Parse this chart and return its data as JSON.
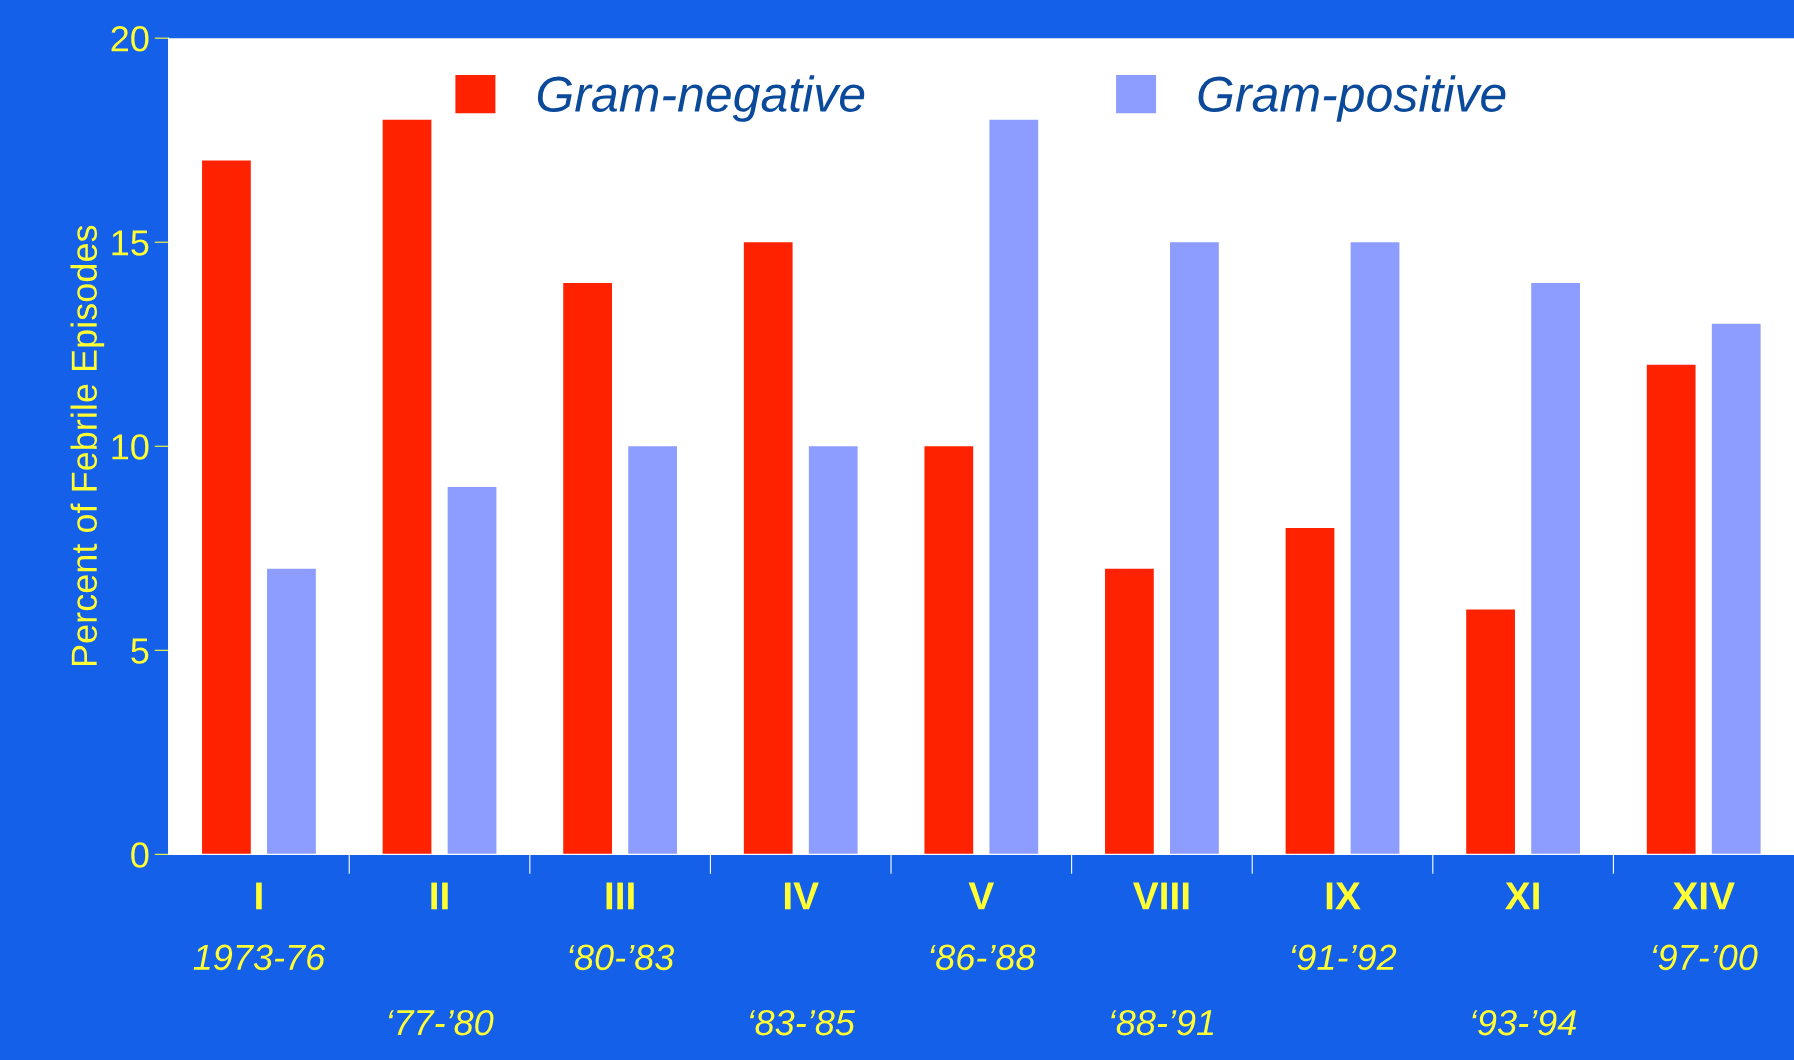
{
  "chart_data": {
    "type": "bar",
    "ylabel": "Percent of Febrile Episodes",
    "categories": [
      "I\n1973-76",
      "II\n‘77-’80",
      "III\n‘80-’83",
      "IV\n‘83-’85",
      "V\n‘86-’88",
      "VIII\n‘88-’91",
      "IX\n‘91-’92",
      "XI\n‘93-’94",
      "XIV\n‘97-’00"
    ],
    "series": [
      {
        "name": "Gram-negative",
        "color": "#ff2200",
        "values": [
          17,
          18,
          14,
          15,
          10,
          7,
          8,
          6,
          12
        ]
      },
      {
        "name": "Gram-positive",
        "color": "#8c9cff",
        "values": [
          7,
          9,
          10,
          10,
          18,
          15,
          15,
          14,
          13
        ]
      }
    ],
    "ylim": [
      0,
      20
    ],
    "yticks": [
      0,
      5,
      10,
      15,
      20
    ],
    "grid": false,
    "legend": "top"
  }
}
